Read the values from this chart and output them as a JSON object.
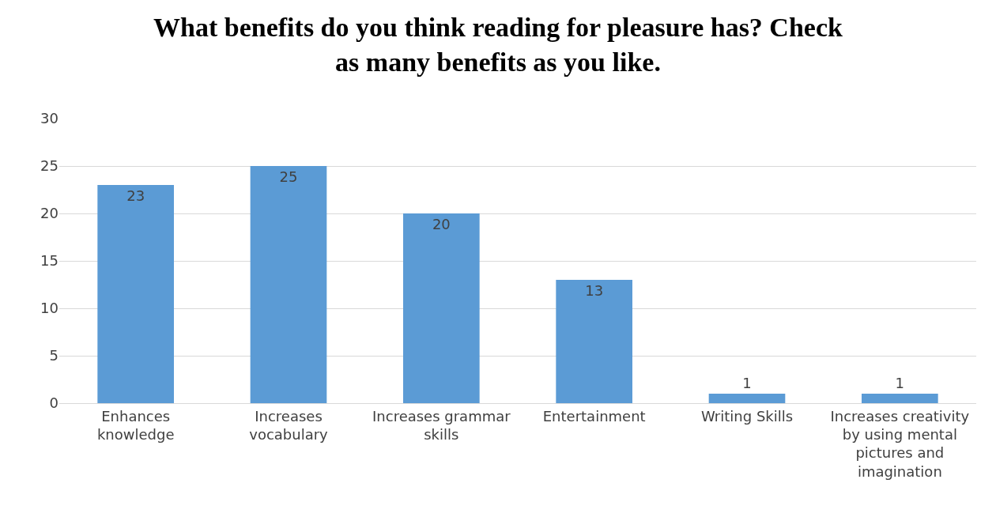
{
  "chart_data": {
    "type": "bar",
    "title": "What benefits do you think reading for pleasure has? Check as many benefits as you like.",
    "categories": [
      "Enhances knowledge",
      "Increases vocabulary",
      "Increases grammar skills",
      "Entertainment",
      "Writing Skills",
      "Increases creativity by using mental pictures and imagination"
    ],
    "values": [
      23,
      25,
      20,
      13,
      1,
      1
    ],
    "color": "#5b9bd5",
    "ylim": [
      0,
      30
    ],
    "yticks": [
      0,
      5,
      10,
      15,
      20,
      25,
      30
    ],
    "grid": "y",
    "data_labels": true
  }
}
